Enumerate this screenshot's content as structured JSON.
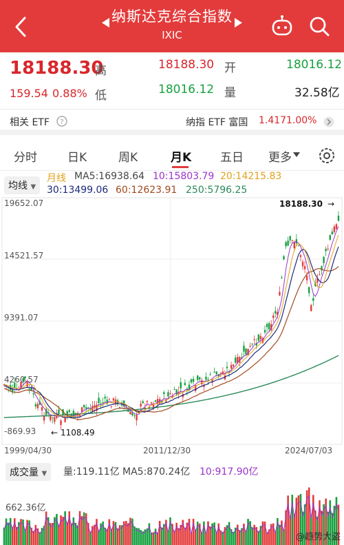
{
  "header": {
    "title": "纳斯达克综合指数",
    "subtitle": "IXIC",
    "icons": [
      "back-chevron-icon",
      "robot-icon",
      "search-icon"
    ],
    "accent_color": "#e33b3b"
  },
  "quote": {
    "price": "18188.30",
    "change": "159.54",
    "change_pct": "0.88%",
    "high_label": "高",
    "high": "18188.30",
    "low_label": "低",
    "low": "18016.12",
    "open_label": "开",
    "open": "18016.12",
    "volume_label": "量",
    "volume": "32.58亿"
  },
  "etf": {
    "label": "相关 ETF",
    "fund_name": "纳指 ETF 富国",
    "fund_price": "1.417",
    "fund_pct": "1.00%"
  },
  "tabs": [
    "分时",
    "日K",
    "周K",
    "月K",
    "五日",
    "更多"
  ],
  "active_tab": 3,
  "indicator": {
    "select_label": "均线",
    "period_label": "月线",
    "ma5": "MA5:16938.64",
    "ma10": "10:15803.79",
    "ma20": "20:14215.83",
    "ma30": "30:13499.06",
    "ma60": "60:12623.91",
    "ma250": "250:5796.25"
  },
  "chart_data": {
    "type": "candlestick",
    "y_labels": [
      "19652.07",
      "14521.57",
      "9391.07",
      "4260.57",
      "-869.93"
    ],
    "x_labels": [
      "1999/04/30",
      "2011/12/30",
      "2024/07/03"
    ],
    "latest_label": "18188.30",
    "low_label": "1108.49",
    "ylim": [
      -869.93,
      19652.07
    ],
    "grid": true
  },
  "volume": {
    "select_label": "成交量",
    "vol": "量:119.11亿",
    "ma5": "MA5:870.24亿",
    "ma10": "10:917.90亿",
    "axis_label": "662.36亿"
  },
  "watermark": "@趋势大盗"
}
